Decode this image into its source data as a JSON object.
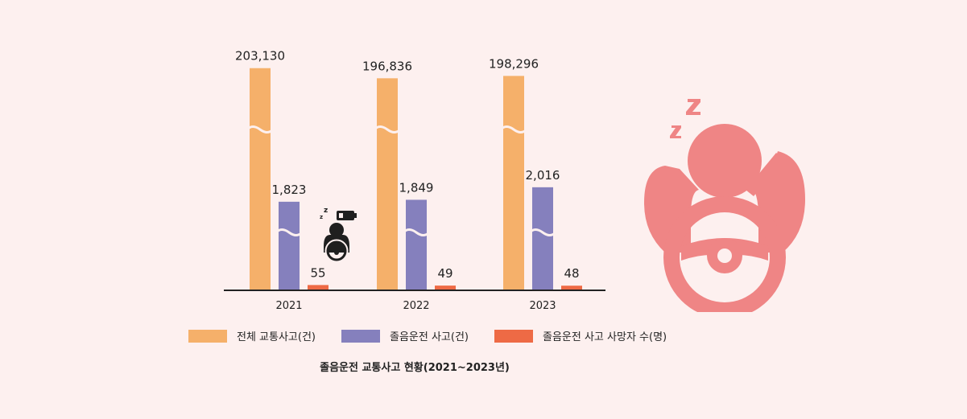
{
  "chart_data": {
    "type": "bar",
    "categories": [
      "2021",
      "2022",
      "2023"
    ],
    "series": [
      {
        "name": "전체 교통사고(건)",
        "values": [
          203130,
          196836,
          198296
        ],
        "color": "#f5b06a",
        "display": [
          "203,130",
          "196,836",
          "198,296"
        ]
      },
      {
        "name": "졸음운전 사고(건)",
        "values": [
          1823,
          1849,
          2016
        ],
        "color": "#8580bd",
        "display": [
          "1,823",
          "1,849",
          "2,016"
        ]
      },
      {
        "name": "졸음운전 사고 사망자 수(명)",
        "values": [
          55,
          49,
          48
        ],
        "color": "#ee6a45",
        "display": [
          "55",
          "49",
          "48"
        ]
      }
    ],
    "title": "졸음운전 교통사고 현황(2021~2023년)",
    "axis_break": true,
    "legend_position": "bottom"
  },
  "colors": {
    "background": "#fdf0ef",
    "illustration": "#ef8585",
    "icon_dark": "#1f1f1f"
  },
  "icons": [
    "drowsy-driver-small-icon",
    "drowsy-driver-large-icon"
  ]
}
